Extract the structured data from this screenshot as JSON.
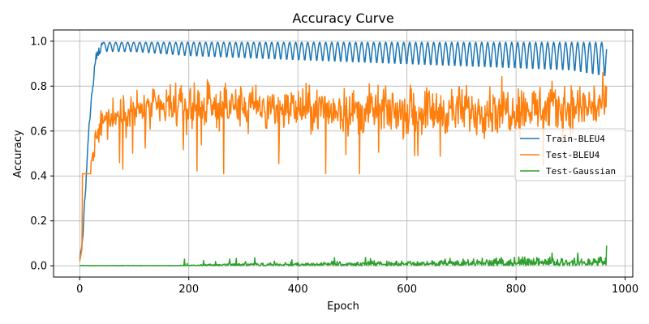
{
  "chart_data": {
    "type": "line",
    "title": "Accuracy Curve",
    "xlabel": "Epoch",
    "ylabel": "Accuracy",
    "xlim": [
      -48,
      1014
    ],
    "ylim": [
      -0.05,
      1.05
    ],
    "xticks": [
      0,
      200,
      400,
      600,
      800,
      1000
    ],
    "yticks": [
      0.0,
      0.2,
      0.4,
      0.6,
      0.8,
      1.0
    ],
    "xtick_labels": [
      "0",
      "200",
      "400",
      "600",
      "800",
      "1000"
    ],
    "ytick_labels": [
      "0.0",
      "0.2",
      "0.4",
      "0.6",
      "0.8",
      "1.0"
    ],
    "grid": true,
    "legend_position": "center-right",
    "n_epochs": 966,
    "series": [
      {
        "name": "Train-BLEU4",
        "color": "#1f77b4",
        "description": "rises quickly from 0.02 to ~0.95 by epoch 40, then oscillates with period ~11 epochs between a peak of ~0.99 and a trough that slowly declines from ~0.94 to ~0.83",
        "x": [
          0,
          5,
          10,
          15,
          20,
          25,
          30,
          35,
          40,
          50,
          100,
          200,
          300,
          400,
          500,
          600,
          700,
          800,
          900,
          966
        ],
        "values": [
          0.02,
          0.12,
          0.3,
          0.55,
          0.7,
          0.82,
          0.93,
          0.95,
          0.97,
          0.95,
          0.95,
          0.93,
          0.92,
          0.91,
          0.9,
          0.89,
          0.88,
          0.87,
          0.86,
          0.83
        ],
        "peak_value": 0.995,
        "oscillation_period": 11
      },
      {
        "name": "Test-BLEU4",
        "color": "#ff7f0e",
        "description": "noisy curve rising from 0.02 to ~0.65 by epoch 40, then fluctuating around ~0.68-0.70 with dips to ~0.41 and spikes to ~0.86",
        "x": [
          0,
          10,
          20,
          30,
          40,
          60,
          100,
          200,
          300,
          400,
          500,
          600,
          700,
          800,
          900,
          966
        ],
        "values": [
          0.02,
          0.15,
          0.42,
          0.6,
          0.65,
          0.66,
          0.69,
          0.71,
          0.71,
          0.7,
          0.69,
          0.69,
          0.69,
          0.7,
          0.7,
          0.72
        ],
        "min_value": 0.41,
        "max_value": 0.86
      },
      {
        "name": "Test-Gaussian",
        "color": "#2ca02c",
        "description": "near zero throughout; small noisy blips growing slightly after epoch 300, ending with a spike to ~0.09",
        "x": [
          0,
          100,
          200,
          300,
          400,
          500,
          600,
          700,
          800,
          900,
          966
        ],
        "values": [
          0.0,
          0.0,
          0.0,
          0.005,
          0.01,
          0.012,
          0.015,
          0.018,
          0.022,
          0.025,
          0.09
        ],
        "max_value": 0.09
      }
    ]
  }
}
